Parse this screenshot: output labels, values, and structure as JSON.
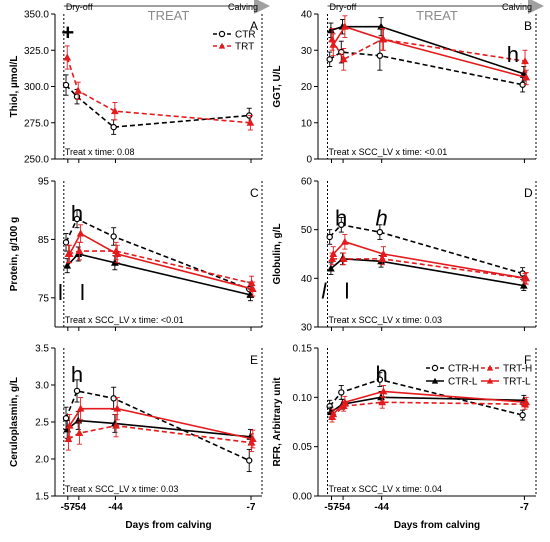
{
  "figure": {
    "xlabel": "Days from calving",
    "x_ticks": [
      -57,
      -54,
      -44,
      -7
    ],
    "header": {
      "dryoff": "Dry-off",
      "treat": "TREAT",
      "calving": "Calving"
    }
  },
  "colors": {
    "ctr": "#000000",
    "trt": "#e41a1c",
    "arrow": "#a0a0a0"
  },
  "icons": {
    "marker_ctr": "open-circle",
    "marker_trt": "triangle",
    "arrow": "right-arrow"
  },
  "chart_data": [
    {
      "panel": "A",
      "type": "line",
      "ylabel": "Thiol, µmol/L",
      "ylim": [
        250,
        350
      ],
      "yticks": [
        "250.0",
        "275.0",
        "300.0",
        "325.0",
        "350.0"
      ],
      "stat": "Treat x time: 0.08",
      "legend": [
        "CTR",
        "TRT"
      ],
      "series": [
        {
          "name": "CTR",
          "x": [
            -57,
            -54,
            -44,
            -7
          ],
          "values": [
            301,
            293,
            272,
            280
          ],
          "err": [
            7,
            5,
            5,
            5
          ],
          "color": "#000000",
          "dash": true,
          "marker": "circle"
        },
        {
          "name": "TRT",
          "x": [
            -57,
            -54,
            -44,
            -7
          ],
          "values": [
            320,
            297,
            283,
            275
          ],
          "err": [
            8,
            6,
            6,
            5
          ],
          "color": "#e41a1c",
          "dash": true,
          "marker": "triangle"
        }
      ],
      "annotations": [
        {
          "text": "+",
          "x": -57,
          "y": 337
        }
      ]
    },
    {
      "panel": "B",
      "type": "line",
      "ylabel": "GGT, U/L",
      "ylim": [
        0,
        40
      ],
      "yticks": [
        "0",
        "10",
        "20",
        "30",
        "40"
      ],
      "stat": "Treat x SCC_LV x time: <0.01",
      "series": [
        {
          "name": "CTR-H",
          "x": [
            -57,
            -54,
            -44,
            -7
          ],
          "values": [
            27.5,
            29.5,
            28.5,
            20.5
          ],
          "err": [
            2,
            3,
            4,
            2
          ],
          "color": "#000000",
          "dash": true,
          "marker": "circle"
        },
        {
          "name": "CTR-L",
          "x": [
            -57,
            -54,
            -44,
            -7
          ],
          "values": [
            35.5,
            36.5,
            36.5,
            23.5
          ],
          "err": [
            2,
            2,
            2.5,
            2
          ],
          "color": "#000000",
          "dash": false,
          "marker": "triangle"
        },
        {
          "name": "TRT-H",
          "x": [
            -57,
            -54,
            -44,
            -7
          ],
          "values": [
            33,
            27.5,
            33,
            27
          ],
          "err": [
            3,
            3,
            3,
            3
          ],
          "color": "#e41a1c",
          "dash": true,
          "marker": "triangle"
        },
        {
          "name": "TRT-L",
          "x": [
            -57,
            -54,
            -44,
            -7
          ],
          "values": [
            31.5,
            36.5,
            33,
            22.5
          ],
          "err": [
            3,
            3,
            3,
            2
          ],
          "color": "#e41a1c",
          "dash": false,
          "marker": "triangle"
        }
      ],
      "annotations": [
        {
          "text": "h",
          "x": -10,
          "y": 29
        }
      ]
    },
    {
      "panel": "C",
      "type": "line",
      "ylabel": "Protein, g/100 g",
      "ylim": [
        70,
        95
      ],
      "yticks": [
        "75",
        "85",
        "95"
      ],
      "stat": "Treat x SCC_LV x time: <0.01",
      "series": [
        {
          "name": "CTR-H",
          "x": [
            -57,
            -54,
            -44,
            -7
          ],
          "values": [
            84.5,
            88.5,
            85.5,
            76.5
          ],
          "err": [
            1.5,
            1.5,
            1.5,
            1.2
          ],
          "color": "#000000",
          "dash": true,
          "marker": "circle"
        },
        {
          "name": "CTR-L",
          "x": [
            -57,
            -54,
            -44,
            -7
          ],
          "values": [
            80.5,
            82.5,
            81,
            75.5
          ],
          "err": [
            1.2,
            1.2,
            1.2,
            1
          ],
          "color": "#000000",
          "dash": false,
          "marker": "triangle"
        },
        {
          "name": "TRT-H",
          "x": [
            -57,
            -54,
            -44,
            -7
          ],
          "values": [
            82.5,
            83,
            83,
            77.5
          ],
          "err": [
            1.5,
            1.5,
            1.5,
            1.2
          ],
          "color": "#e41a1c",
          "dash": true,
          "marker": "triangle"
        },
        {
          "name": "TRT-L",
          "x": [
            -57,
            -54,
            -44,
            -7
          ],
          "values": [
            82.5,
            86,
            82.5,
            76.5
          ],
          "err": [
            1.5,
            1.5,
            1.5,
            1.2
          ],
          "color": "#e41a1c",
          "dash": false,
          "marker": "triangle"
        }
      ],
      "annotations": [
        {
          "text": "h",
          "x": -54.5,
          "y": 89.5
        },
        {
          "text": "l",
          "x": -59,
          "y": 76
        },
        {
          "text": "l",
          "x": -53,
          "y": 76
        }
      ]
    },
    {
      "panel": "D",
      "type": "line",
      "ylabel": "Globulin, g/L",
      "ylim": [
        30,
        60
      ],
      "yticks": [
        "30",
        "40",
        "50",
        "60"
      ],
      "stat": "Treat x SCC_LV x time: 0.03",
      "series": [
        {
          "name": "CTR-H",
          "x": [
            -57,
            -54,
            -44,
            -7
          ],
          "values": [
            48.5,
            51,
            49.5,
            41
          ],
          "err": [
            1.5,
            1.5,
            1.5,
            1.2
          ],
          "color": "#000000",
          "dash": true,
          "marker": "circle"
        },
        {
          "name": "CTR-L",
          "x": [
            -57,
            -54,
            -44,
            -7
          ],
          "values": [
            42,
            44,
            43.5,
            38.5
          ],
          "err": [
            1.2,
            1.2,
            1.2,
            1
          ],
          "color": "#000000",
          "dash": false,
          "marker": "triangle"
        },
        {
          "name": "TRT-H",
          "x": [
            -57,
            -54,
            -44,
            -7
          ],
          "values": [
            44,
            44,
            44,
            40
          ],
          "err": [
            1.2,
            1.2,
            1.2,
            1
          ],
          "color": "#e41a1c",
          "dash": true,
          "marker": "triangle"
        },
        {
          "name": "TRT-L",
          "x": [
            -57,
            -54,
            -44,
            -7
          ],
          "values": [
            45,
            47.5,
            45,
            40
          ],
          "err": [
            1.5,
            1.5,
            1.5,
            1.2
          ],
          "color": "#e41a1c",
          "dash": false,
          "marker": "triangle"
        }
      ],
      "annotations": [
        {
          "text": "h",
          "x": -54.5,
          "y": 52.5
        },
        {
          "text": "h",
          "x": -44,
          "y": 52.5,
          "italic": true
        },
        {
          "text": "l",
          "x": -59,
          "y": 37.5,
          "italic": true
        },
        {
          "text": "l",
          "x": -53,
          "y": 37.5
        }
      ]
    },
    {
      "panel": "E",
      "type": "line",
      "ylabel": "Ceruloplasmin, g/L",
      "ylim": [
        1.5,
        3.5
      ],
      "yticks": [
        "1.5",
        "2.0",
        "2.5",
        "3.0",
        "3.5"
      ],
      "stat": "Treat x SCC_LV x time: 0.03",
      "series": [
        {
          "name": "CTR-H",
          "x": [
            -57,
            -54,
            -44,
            -7
          ],
          "values": [
            2.55,
            2.92,
            2.82,
            1.98
          ],
          "err": [
            0.15,
            0.15,
            0.15,
            0.15
          ],
          "color": "#000000",
          "dash": true,
          "marker": "circle"
        },
        {
          "name": "CTR-L",
          "x": [
            -57,
            -54,
            -44,
            -7
          ],
          "values": [
            2.4,
            2.52,
            2.48,
            2.3
          ],
          "err": [
            0.12,
            0.12,
            0.12,
            0.1
          ],
          "color": "#000000",
          "dash": false,
          "marker": "triangle"
        },
        {
          "name": "TRT-H",
          "x": [
            -57,
            -54,
            -44,
            -7
          ],
          "values": [
            2.27,
            2.35,
            2.45,
            2.22
          ],
          "err": [
            0.15,
            0.15,
            0.15,
            0.12
          ],
          "color": "#e41a1c",
          "dash": true,
          "marker": "triangle"
        },
        {
          "name": "TRT-L",
          "x": [
            -57,
            -54,
            -44,
            -7
          ],
          "values": [
            2.45,
            2.68,
            2.68,
            2.27
          ],
          "err": [
            0.15,
            0.15,
            0.15,
            0.12
          ],
          "color": "#e41a1c",
          "dash": false,
          "marker": "triangle"
        }
      ],
      "annotations": [
        {
          "text": "h",
          "x": -54.5,
          "y": 3.15
        }
      ]
    },
    {
      "panel": "F",
      "type": "line",
      "ylabel": "RFR, Arbitrary unit",
      "ylim": [
        0.0,
        0.15
      ],
      "yticks": [
        "0.00",
        "0.05",
        "0.10",
        "0.15"
      ],
      "stat": "Treat x SCC_LV x time: 0.04",
      "legend": [
        "CTR-H",
        "CTR-L",
        "TRT-H",
        "TRT-L"
      ],
      "series": [
        {
          "name": "CTR-H",
          "x": [
            -57,
            -54,
            -44,
            -7
          ],
          "values": [
            0.091,
            0.105,
            0.118,
            0.082
          ],
          "err": [
            0.006,
            0.007,
            0.007,
            0.005
          ],
          "color": "#000000",
          "dash": true,
          "marker": "circle"
        },
        {
          "name": "CTR-L",
          "x": [
            -57,
            -54,
            -44,
            -7
          ],
          "values": [
            0.085,
            0.093,
            0.1,
            0.097
          ],
          "err": [
            0.005,
            0.005,
            0.006,
            0.005
          ],
          "color": "#000000",
          "dash": false,
          "marker": "triangle"
        },
        {
          "name": "TRT-H",
          "x": [
            -57,
            -54,
            -44,
            -7
          ],
          "values": [
            0.08,
            0.091,
            0.095,
            0.093
          ],
          "err": [
            0.005,
            0.005,
            0.006,
            0.005
          ],
          "color": "#e41a1c",
          "dash": true,
          "marker": "triangle"
        },
        {
          "name": "TRT-L",
          "x": [
            -57,
            -54,
            -44,
            -7
          ],
          "values": [
            0.083,
            0.095,
            0.106,
            0.095
          ],
          "err": [
            0.005,
            0.006,
            0.006,
            0.005
          ],
          "color": "#e41a1c",
          "dash": false,
          "marker": "triangle"
        }
      ],
      "annotations": [
        {
          "text": "h",
          "x": -44,
          "y": 0.124
        }
      ]
    }
  ]
}
